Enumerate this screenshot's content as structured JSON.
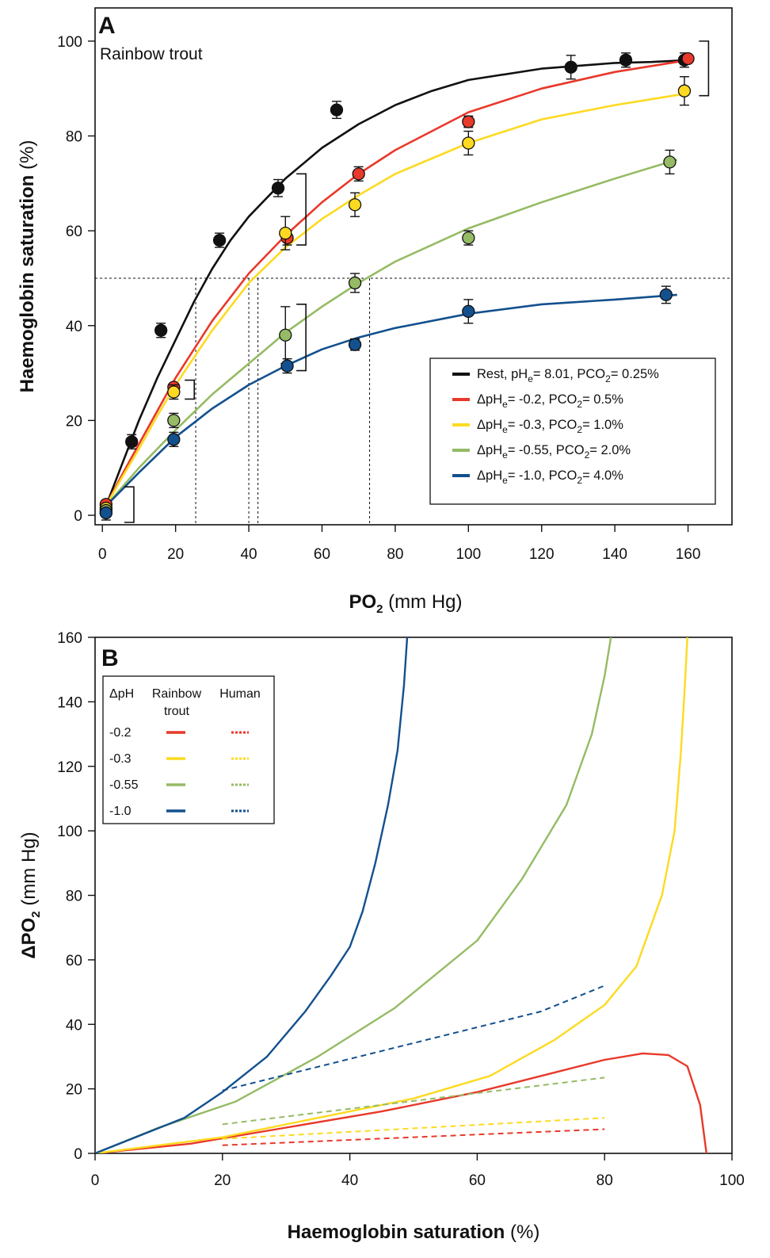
{
  "chart_data": [
    {
      "panel": "A",
      "type": "line",
      "subtitle": "Rainbow trout",
      "xlabel": {
        "main": "PO",
        "sub": "2",
        "unit": " (mm Hg)"
      },
      "ylabel": {
        "main": "Haemoglobin saturation",
        "unit": " (%)"
      },
      "xlim": [
        -2,
        172
      ],
      "ylim": [
        -2,
        107
      ],
      "xticks": [
        0,
        20,
        40,
        60,
        80,
        100,
        120,
        140,
        160
      ],
      "yticks": [
        0,
        20,
        40,
        60,
        80,
        100
      ],
      "legend_position": "lower-right",
      "reference_line_y": 50,
      "p50_x": [
        25.5,
        40,
        42.5,
        73
      ],
      "series": [
        {
          "key": "rest",
          "legend": "Rest, pH|e|= 8.01, PCO|2|= 0.25%",
          "color": "#111111",
          "curve": [
            [
              1,
              2
            ],
            [
              5,
              10
            ],
            [
              10,
              20
            ],
            [
              15,
              29
            ],
            [
              20,
              37
            ],
            [
              25,
              45
            ],
            [
              30,
              52
            ],
            [
              35,
              58
            ],
            [
              40,
              63
            ],
            [
              50,
              71
            ],
            [
              60,
              77.5
            ],
            [
              70,
              82.5
            ],
            [
              80,
              86.5
            ],
            [
              90,
              89.5
            ],
            [
              100,
              91.8
            ],
            [
              120,
              94.2
            ],
            [
              140,
              95.4
            ],
            [
              150,
              95.6
            ],
            [
              160,
              96
            ]
          ],
          "points": [
            [
              1,
              0.5,
              1.5
            ],
            [
              8,
              15.5,
              1.5
            ],
            [
              16,
              39,
              1.5
            ],
            [
              32,
              58,
              1.5
            ],
            [
              48,
              69,
              1.8
            ],
            [
              64,
              85.5,
              1.8
            ],
            [
              128,
              94.5,
              2.5
            ],
            [
              143,
              96,
              1.5
            ],
            [
              159,
              96,
              1.5
            ]
          ]
        },
        {
          "key": "ph02",
          "legend": "ΔpH|e|= -0.2, PCO|2|= 0.5%",
          "color": "#e8392a",
          "curve": [
            [
              1,
              2
            ],
            [
              5,
              8
            ],
            [
              10,
              15
            ],
            [
              15,
              22
            ],
            [
              20,
              29
            ],
            [
              25,
              35
            ],
            [
              30,
              41
            ],
            [
              40,
              51
            ],
            [
              50,
              59
            ],
            [
              60,
              66
            ],
            [
              70,
              72
            ],
            [
              80,
              77
            ],
            [
              100,
              85
            ],
            [
              120,
              90
            ],
            [
              140,
              93.5
            ],
            [
              160,
              96
            ]
          ],
          "points": [
            [
              1,
              2.3,
              0
            ],
            [
              19.5,
              27,
              0
            ],
            [
              50.5,
              58.5,
              1.5
            ],
            [
              70,
              72,
              1.5
            ],
            [
              100,
              83,
              1.2
            ],
            [
              160,
              96.3,
              0
            ]
          ]
        },
        {
          "key": "ph03",
          "legend": "ΔpH|e|= -0.3, PCO|2|= 1.0%",
          "color": "#fdda21",
          "curve": [
            [
              1,
              2
            ],
            [
              5,
              7.5
            ],
            [
              10,
              14
            ],
            [
              15,
              21
            ],
            [
              20,
              27.5
            ],
            [
              30,
              39
            ],
            [
              40,
              49
            ],
            [
              50,
              56.5
            ],
            [
              60,
              62.5
            ],
            [
              70,
              67.5
            ],
            [
              80,
              72
            ],
            [
              100,
              78.5
            ],
            [
              120,
              83.5
            ],
            [
              140,
              86.5
            ],
            [
              160,
              89
            ]
          ],
          "points": [
            [
              1,
              1.5,
              0
            ],
            [
              19.5,
              26,
              1.5
            ],
            [
              50,
              59.5,
              3.5
            ],
            [
              69,
              65.5,
              2.5
            ],
            [
              100,
              78.5,
              2.5
            ],
            [
              159,
              89.5,
              3
            ]
          ]
        },
        {
          "key": "ph055",
          "legend": "ΔpH|e|= -0.55, PCO|2|= 2.0%",
          "color": "#95bb64",
          "curve": [
            [
              1,
              2
            ],
            [
              10,
              10
            ],
            [
              20,
              18
            ],
            [
              30,
              25.5
            ],
            [
              40,
              32
            ],
            [
              50,
              38.5
            ],
            [
              60,
              44
            ],
            [
              70,
              49
            ],
            [
              80,
              53.5
            ],
            [
              90,
              57
            ],
            [
              100,
              60.5
            ],
            [
              120,
              66
            ],
            [
              140,
              71
            ],
            [
              157,
              75
            ]
          ],
          "points": [
            [
              1,
              1,
              0
            ],
            [
              19.5,
              20,
              1.5
            ],
            [
              50,
              38,
              6
            ],
            [
              69,
              49,
              2
            ],
            [
              100,
              58.5,
              1.5
            ],
            [
              155,
              74.5,
              2.5
            ]
          ]
        },
        {
          "key": "ph10",
          "legend": "ΔpH|e|= -1.0, PCO|2|= 4.0%",
          "color": "#13508e",
          "curve": [
            [
              1,
              2
            ],
            [
              10,
              9
            ],
            [
              20,
              16.5
            ],
            [
              30,
              22.5
            ],
            [
              40,
              27.5
            ],
            [
              50,
              31.5
            ],
            [
              60,
              35
            ],
            [
              70,
              37.5
            ],
            [
              80,
              39.5
            ],
            [
              100,
              42.5
            ],
            [
              120,
              44.5
            ],
            [
              140,
              45.5
            ],
            [
              157,
              46.5
            ]
          ],
          "points": [
            [
              1,
              0.5,
              0
            ],
            [
              19.5,
              16,
              1.5
            ],
            [
              50.5,
              31.5,
              1.5
            ],
            [
              69,
              36,
              1.2
            ],
            [
              100,
              43,
              2.5
            ],
            [
              154,
              46.5,
              1.8
            ]
          ]
        }
      ]
    },
    {
      "panel": "B",
      "type": "line",
      "xlabel": {
        "main": "Haemoglobin saturation",
        "unit": " (%)"
      },
      "ylabel": {
        "main": "ΔPO",
        "sub": "2",
        "unit": " (mm Hg)"
      },
      "xlim": [
        0,
        100
      ],
      "ylim": [
        0,
        160
      ],
      "xticks": [
        0,
        20,
        40,
        60,
        80,
        100
      ],
      "yticks": [
        0,
        20,
        40,
        60,
        80,
        100,
        120,
        140,
        160
      ],
      "legend_position": "top-left",
      "legend_headers": {
        "dph": "ΔpH",
        "trout_line1": "Rainbow",
        "trout_line2": "trout",
        "human": "Human"
      },
      "legend_rows": [
        "-0.2",
        "-0.3",
        "-0.55",
        "-1.0"
      ],
      "series": [
        {
          "name": "-0.2",
          "group": "Rainbow trout",
          "color": "#e8392a",
          "dash": "",
          "points": [
            [
              0,
              0
            ],
            [
              15,
              3
            ],
            [
              30,
              8
            ],
            [
              45,
              13
            ],
            [
              60,
              19
            ],
            [
              72,
              25
            ],
            [
              80,
              29
            ],
            [
              86,
              31
            ],
            [
              90,
              30.5
            ],
            [
              93,
              27
            ],
            [
              95,
              15
            ],
            [
              96,
              0
            ]
          ]
        },
        {
          "name": "-0.3",
          "group": "Rainbow trout",
          "color": "#fdda21",
          "dash": "",
          "points": [
            [
              0,
              0
            ],
            [
              20,
              5
            ],
            [
              40,
              13
            ],
            [
              50,
              17
            ],
            [
              62,
              24
            ],
            [
              72,
              35
            ],
            [
              80,
              46
            ],
            [
              85,
              58
            ],
            [
              89,
              80
            ],
            [
              91,
              100
            ],
            [
              92,
              125
            ],
            [
              92.6,
              145
            ],
            [
              93,
              160
            ]
          ]
        },
        {
          "name": "-0.55",
          "group": "Rainbow trout",
          "color": "#95bb64",
          "dash": "",
          "points": [
            [
              0,
              0
            ],
            [
              10,
              8
            ],
            [
              22,
              16
            ],
            [
              35,
              30
            ],
            [
              47,
              45
            ],
            [
              60,
              66
            ],
            [
              67,
              85
            ],
            [
              74,
              108
            ],
            [
              78,
              130
            ],
            [
              80,
              148
            ],
            [
              81,
              160
            ]
          ]
        },
        {
          "name": "-1.0",
          "group": "Rainbow trout",
          "color": "#13508e",
          "dash": "",
          "points": [
            [
              0,
              0
            ],
            [
              14,
              11
            ],
            [
              20,
              19
            ],
            [
              27,
              30
            ],
            [
              33,
              44
            ],
            [
              37,
              55
            ],
            [
              40,
              64
            ],
            [
              42,
              75
            ],
            [
              44,
              90
            ],
            [
              46,
              108
            ],
            [
              47.5,
              125
            ],
            [
              48.5,
              145
            ],
            [
              49,
              160
            ]
          ]
        },
        {
          "name": "-0.2",
          "group": "Human",
          "color": "#e8392a",
          "dash": "7,5",
          "points": [
            [
              20,
              2.5
            ],
            [
              80,
              7.5
            ]
          ]
        },
        {
          "name": "-0.3",
          "group": "Human",
          "color": "#fdda21",
          "dash": "7,5",
          "points": [
            [
              20,
              4.5
            ],
            [
              80,
              11
            ]
          ]
        },
        {
          "name": "-0.55",
          "group": "Human",
          "color": "#95bb64",
          "dash": "7,5",
          "points": [
            [
              20,
              9
            ],
            [
              80,
              23.5
            ]
          ]
        },
        {
          "name": "-1.0",
          "group": "Human",
          "color": "#13508e",
          "dash": "7,5",
          "points": [
            [
              20,
              19.5
            ],
            [
              70,
              44
            ],
            [
              80,
              52
            ]
          ]
        }
      ]
    }
  ]
}
